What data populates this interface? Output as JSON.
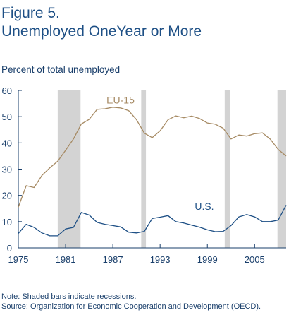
{
  "header": {
    "title_line1": "Figure 5.",
    "title_line2": "Unemployed OneYear or More"
  },
  "notes": {
    "line1": "Note: Shaded bars indicate recessions.",
    "line2": "Source: Organization for Economic Cooperation and Development (OECD)."
  },
  "chart_data": {
    "type": "line",
    "title": "Unemployed OneYear or More",
    "ylabel": "Percent of total unemployed",
    "xlabel": "",
    "xlim": [
      1975,
      2009
    ],
    "ylim": [
      0,
      60
    ],
    "x_ticks": [
      1975,
      1981,
      1987,
      1993,
      1999,
      2005
    ],
    "y_ticks": [
      0,
      10,
      20,
      30,
      40,
      50,
      60
    ],
    "grid": false,
    "legend": "inline labels",
    "recessions": [
      [
        1980.0,
        1982.9
      ],
      [
        1990.6,
        1991.2
      ],
      [
        2001.2,
        2001.9
      ],
      [
        2007.9,
        2009.4
      ]
    ],
    "colors": {
      "eu15": "#a68a63",
      "us": "#1d4f85",
      "recession": "#d3d3d3",
      "axis": "#1a3f6b"
    },
    "series": [
      {
        "name": "EU-15",
        "x": [
          1975,
          1976,
          1977,
          1978,
          1979,
          1980,
          1981,
          1982,
          1983,
          1984,
          1985,
          1986,
          1987,
          1988,
          1989,
          1990,
          1991,
          1992,
          1993,
          1994,
          1995,
          1996,
          1997,
          1998,
          1999,
          2000,
          2001,
          2002,
          2003,
          2004,
          2005,
          2006,
          2007,
          2008,
          2009
        ],
        "values": [
          15.5,
          23.7,
          23,
          27.6,
          30.5,
          33,
          37.2,
          41.5,
          47.2,
          49,
          52.8,
          53,
          53.6,
          53.3,
          52.3,
          48.9,
          43.7,
          42,
          44.6,
          48.8,
          50.3,
          49.6,
          50.2,
          49.3,
          47.6,
          47.1,
          45.6,
          41.5,
          43,
          42.6,
          43.5,
          43.8,
          41.4,
          37.5,
          35
        ]
      },
      {
        "name": "U.S.",
        "x": [
          1975,
          1976,
          1977,
          1978,
          1979,
          1980,
          1981,
          1982,
          1983,
          1984,
          1985,
          1986,
          1987,
          1988,
          1989,
          1990,
          1991,
          1992,
          1993,
          1994,
          1995,
          1996,
          1997,
          1998,
          1999,
          2000,
          2001,
          2002,
          2003,
          2004,
          2005,
          2006,
          2007,
          2008,
          2009
        ],
        "values": [
          5.5,
          9,
          7.8,
          5.7,
          4.6,
          4.6,
          7.2,
          7.8,
          13.5,
          12.5,
          9.7,
          9,
          8.5,
          8,
          6,
          5.7,
          6.3,
          11.2,
          11.7,
          12.3,
          10,
          9.5,
          8.7,
          7.9,
          6.9,
          6.2,
          6.3,
          8.5,
          11.8,
          12.7,
          11.8,
          10,
          10,
          10.6,
          16.3
        ]
      }
    ],
    "series_label_positions": [
      {
        "series": "EU-15",
        "x": 1986.2,
        "y": 55
      },
      {
        "series": "U.S.",
        "x": 1997.4,
        "y": 14.5
      }
    ]
  }
}
